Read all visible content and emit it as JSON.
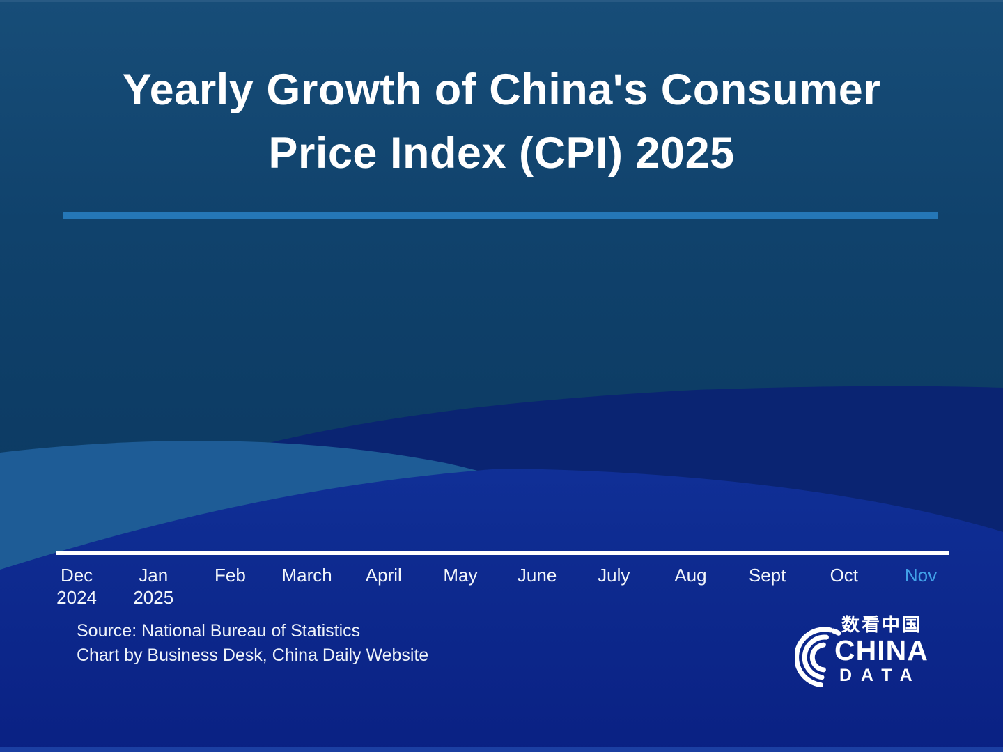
{
  "title": {
    "line1": "Yearly Growth of China's Consumer",
    "line2": "Price Index (CPI) 2025",
    "full": "Yearly Growth of China's Consumer Price Index (CPI) 2025"
  },
  "colors": {
    "background_top": "#174d78",
    "background_mid": "#0c3a62",
    "wave_light": "#1e5c96",
    "wave_navy": "#0a2472",
    "wave_royal_top": "#103097",
    "wave_royal_bottom": "#0a2183",
    "bottom_edge_strip": "#1d42a5",
    "divider": "#2577b7",
    "axis_line": "#ffffff",
    "month_label": "#f2f6fb",
    "month_highlight": "#41a0e8",
    "title_text": "#ffffff"
  },
  "axis": {
    "months": [
      {
        "label": "Dec",
        "sub": "2024",
        "highlighted": false
      },
      {
        "label": "Jan",
        "sub": "2025",
        "highlighted": false
      },
      {
        "label": "Feb",
        "sub": "",
        "highlighted": false
      },
      {
        "label": "March",
        "sub": "",
        "highlighted": false
      },
      {
        "label": "April",
        "sub": "",
        "highlighted": false
      },
      {
        "label": "May",
        "sub": "",
        "highlighted": false
      },
      {
        "label": "June",
        "sub": "",
        "highlighted": false
      },
      {
        "label": "July",
        "sub": "",
        "highlighted": false
      },
      {
        "label": "Aug",
        "sub": "",
        "highlighted": false
      },
      {
        "label": "Sept",
        "sub": "",
        "highlighted": false
      },
      {
        "label": "Oct",
        "sub": "",
        "highlighted": false
      },
      {
        "label": "Nov",
        "sub": "",
        "highlighted": true
      }
    ]
  },
  "chart_data": {
    "type": "line",
    "title": "Yearly Growth of China's Consumer Price Index (CPI) 2025",
    "categories": [
      "Dec 2024",
      "Jan 2025",
      "Feb",
      "March",
      "April",
      "May",
      "June",
      "July",
      "Aug",
      "Sept",
      "Oct",
      "Nov"
    ],
    "series": [],
    "values_shown": false,
    "highlighted_category": "Nov",
    "xlabel": "",
    "ylabel": "",
    "legend": false,
    "grid": false,
    "plot_area_empty": true
  },
  "source": {
    "line1": "Source: National Bureau of Statistics",
    "line2": "Chart by Business Desk, China Daily Website"
  },
  "logo": {
    "chinese": "数看中国",
    "name_en": "CHINA",
    "sub_en": "DATA"
  }
}
